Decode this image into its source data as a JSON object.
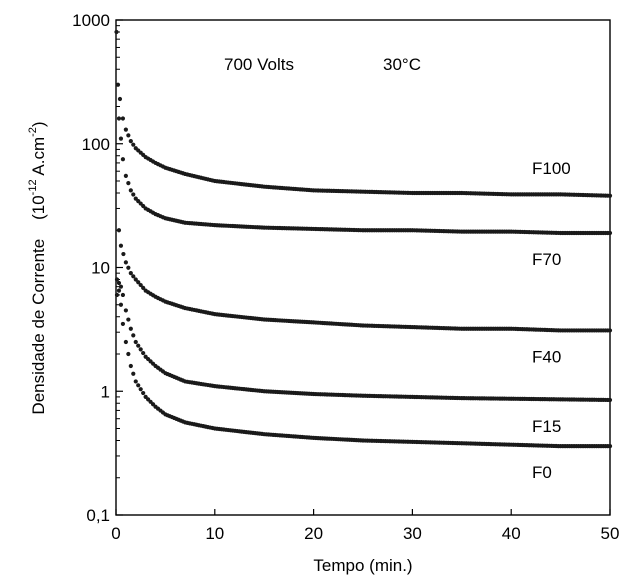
{
  "chart_data": {
    "type": "scatter",
    "title": "",
    "annotations": [
      "700 Volts",
      "30°C"
    ],
    "xlabel": "Tempo  (min.)",
    "ylabel_main": "Densidade de Corrente",
    "ylabel_unit": {
      "prefix": "(10",
      "exp1": "-12",
      "mid": " A.cm",
      "exp2": "-2",
      "suffix": ")"
    },
    "xlim": [
      0,
      50
    ],
    "ylim": [
      0.1,
      1000
    ],
    "yscale": "log",
    "grid": false,
    "x_ticks": [
      0,
      10,
      20,
      30,
      40,
      50
    ],
    "x_tick_labels": [
      "0",
      "10",
      "20",
      "30",
      "40",
      "50"
    ],
    "y_ticks": [
      0.1,
      1,
      10,
      100,
      1000
    ],
    "y_tick_labels": [
      "0,1",
      "1",
      "10",
      "100",
      "1000"
    ],
    "marker_color": "#1a1a1a",
    "series": [
      {
        "name": "F100",
        "x": [
          0.05,
          0.2,
          0.4,
          0.7,
          1,
          1.5,
          2,
          3,
          4,
          5,
          7,
          10,
          15,
          20,
          25,
          30,
          35,
          40,
          45,
          50
        ],
        "y": [
          800,
          300,
          230,
          160,
          130,
          105,
          92,
          78,
          70,
          64,
          57,
          50,
          45,
          42,
          41,
          40,
          40,
          39,
          39,
          38
        ]
      },
      {
        "name": "F70",
        "x": [
          0.3,
          0.5,
          0.7,
          1,
          1.5,
          2,
          3,
          4,
          5,
          7,
          10,
          15,
          20,
          25,
          30,
          35,
          40,
          45,
          50
        ],
        "y": [
          160,
          110,
          75,
          55,
          42,
          36,
          30,
          27,
          25,
          23,
          22,
          21,
          20.5,
          20,
          20,
          19.5,
          19.5,
          19,
          19
        ]
      },
      {
        "name": "F40",
        "x": [
          0.3,
          0.5,
          1,
          1.5,
          2,
          3,
          4,
          5,
          7,
          10,
          15,
          20,
          25,
          30,
          35,
          40,
          45,
          50
        ],
        "y": [
          20,
          15,
          11,
          9,
          8,
          6.5,
          5.8,
          5.3,
          4.7,
          4.2,
          3.8,
          3.6,
          3.4,
          3.3,
          3.2,
          3.2,
          3.1,
          3.1
        ]
      },
      {
        "name": "F15",
        "x": [
          0.1,
          0.3,
          0.5,
          0.7,
          1,
          1.5,
          2,
          3,
          4,
          5,
          7,
          10,
          15,
          20,
          25,
          30,
          35,
          40,
          45,
          50
        ],
        "y": [
          6,
          7.5,
          7,
          6,
          4.5,
          3.2,
          2.5,
          1.9,
          1.6,
          1.4,
          1.2,
          1.1,
          1,
          0.95,
          0.92,
          0.9,
          0.88,
          0.87,
          0.86,
          0.85
        ]
      },
      {
        "name": "F0",
        "x": [
          0.1,
          0.3,
          0.5,
          0.7,
          1,
          1.5,
          2,
          3,
          4,
          5,
          7,
          10,
          15,
          20,
          25,
          30,
          35,
          40,
          45,
          50
        ],
        "y": [
          8,
          6.5,
          5,
          3.5,
          2.5,
          1.6,
          1.2,
          0.9,
          0.75,
          0.65,
          0.56,
          0.5,
          0.45,
          0.42,
          0.4,
          0.39,
          0.38,
          0.37,
          0.36,
          0.36
        ]
      }
    ]
  }
}
